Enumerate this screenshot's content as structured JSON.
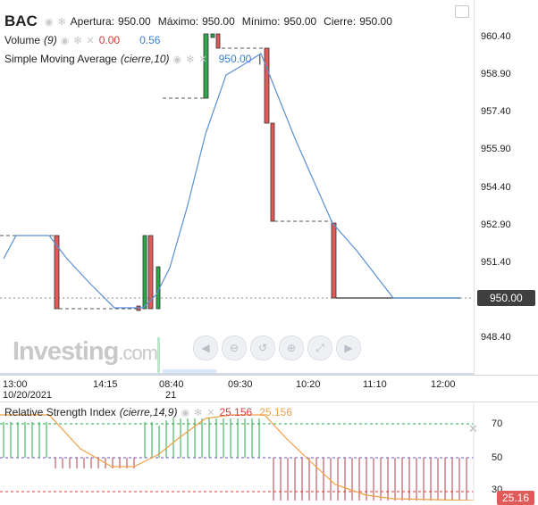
{
  "header": {
    "symbol": "BAC",
    "open_label": "Apertura:",
    "open_value": "950.00",
    "high_label": "Máximo:",
    "high_value": "950.00",
    "low_label": "Mínimo:",
    "low_value": "950.00",
    "close_label": "Cierre:",
    "close_value": "950.00"
  },
  "volume": {
    "label": "Volume",
    "param": "(9)",
    "value1": "0.00",
    "value2": "0.56"
  },
  "sma": {
    "label": "Simple Moving Average",
    "param": "(cierre,10)",
    "value": "950.00"
  },
  "logo": {
    "brand": "Investing",
    "suffix": ".com"
  },
  "price_axis": {
    "ticks": [
      "960.40",
      "958.90",
      "957.40",
      "955.90",
      "954.40",
      "952.90",
      "951.40",
      "948.40"
    ],
    "last_price": "950.00"
  },
  "time_axis": {
    "labels": [
      "13:00",
      "14:15",
      "08:40",
      "09:30",
      "10:20",
      "11:10",
      "12:00"
    ],
    "sub_labels": [
      "10/20/2021",
      "21"
    ]
  },
  "rsi": {
    "label": "Relative Strength Index",
    "param": "(cierre,14,9)",
    "value1": "25.156",
    "value2": "25.156",
    "axis_ticks": [
      "70",
      "50",
      "30"
    ],
    "badge": "25.16"
  },
  "icons": {
    "eye": "eye-icon",
    "gear": "gear-icon",
    "close": "close-icon",
    "nav": [
      "scroll-left-icon",
      "zoom-out-icon",
      "reset-icon",
      "zoom-in-icon",
      "fit-icon",
      "scroll-right-icon"
    ]
  },
  "colors": {
    "up": "#2aa84a",
    "down": "#e05a5a",
    "sma": "#5b8fd6",
    "rsi": "#f2a046"
  }
}
